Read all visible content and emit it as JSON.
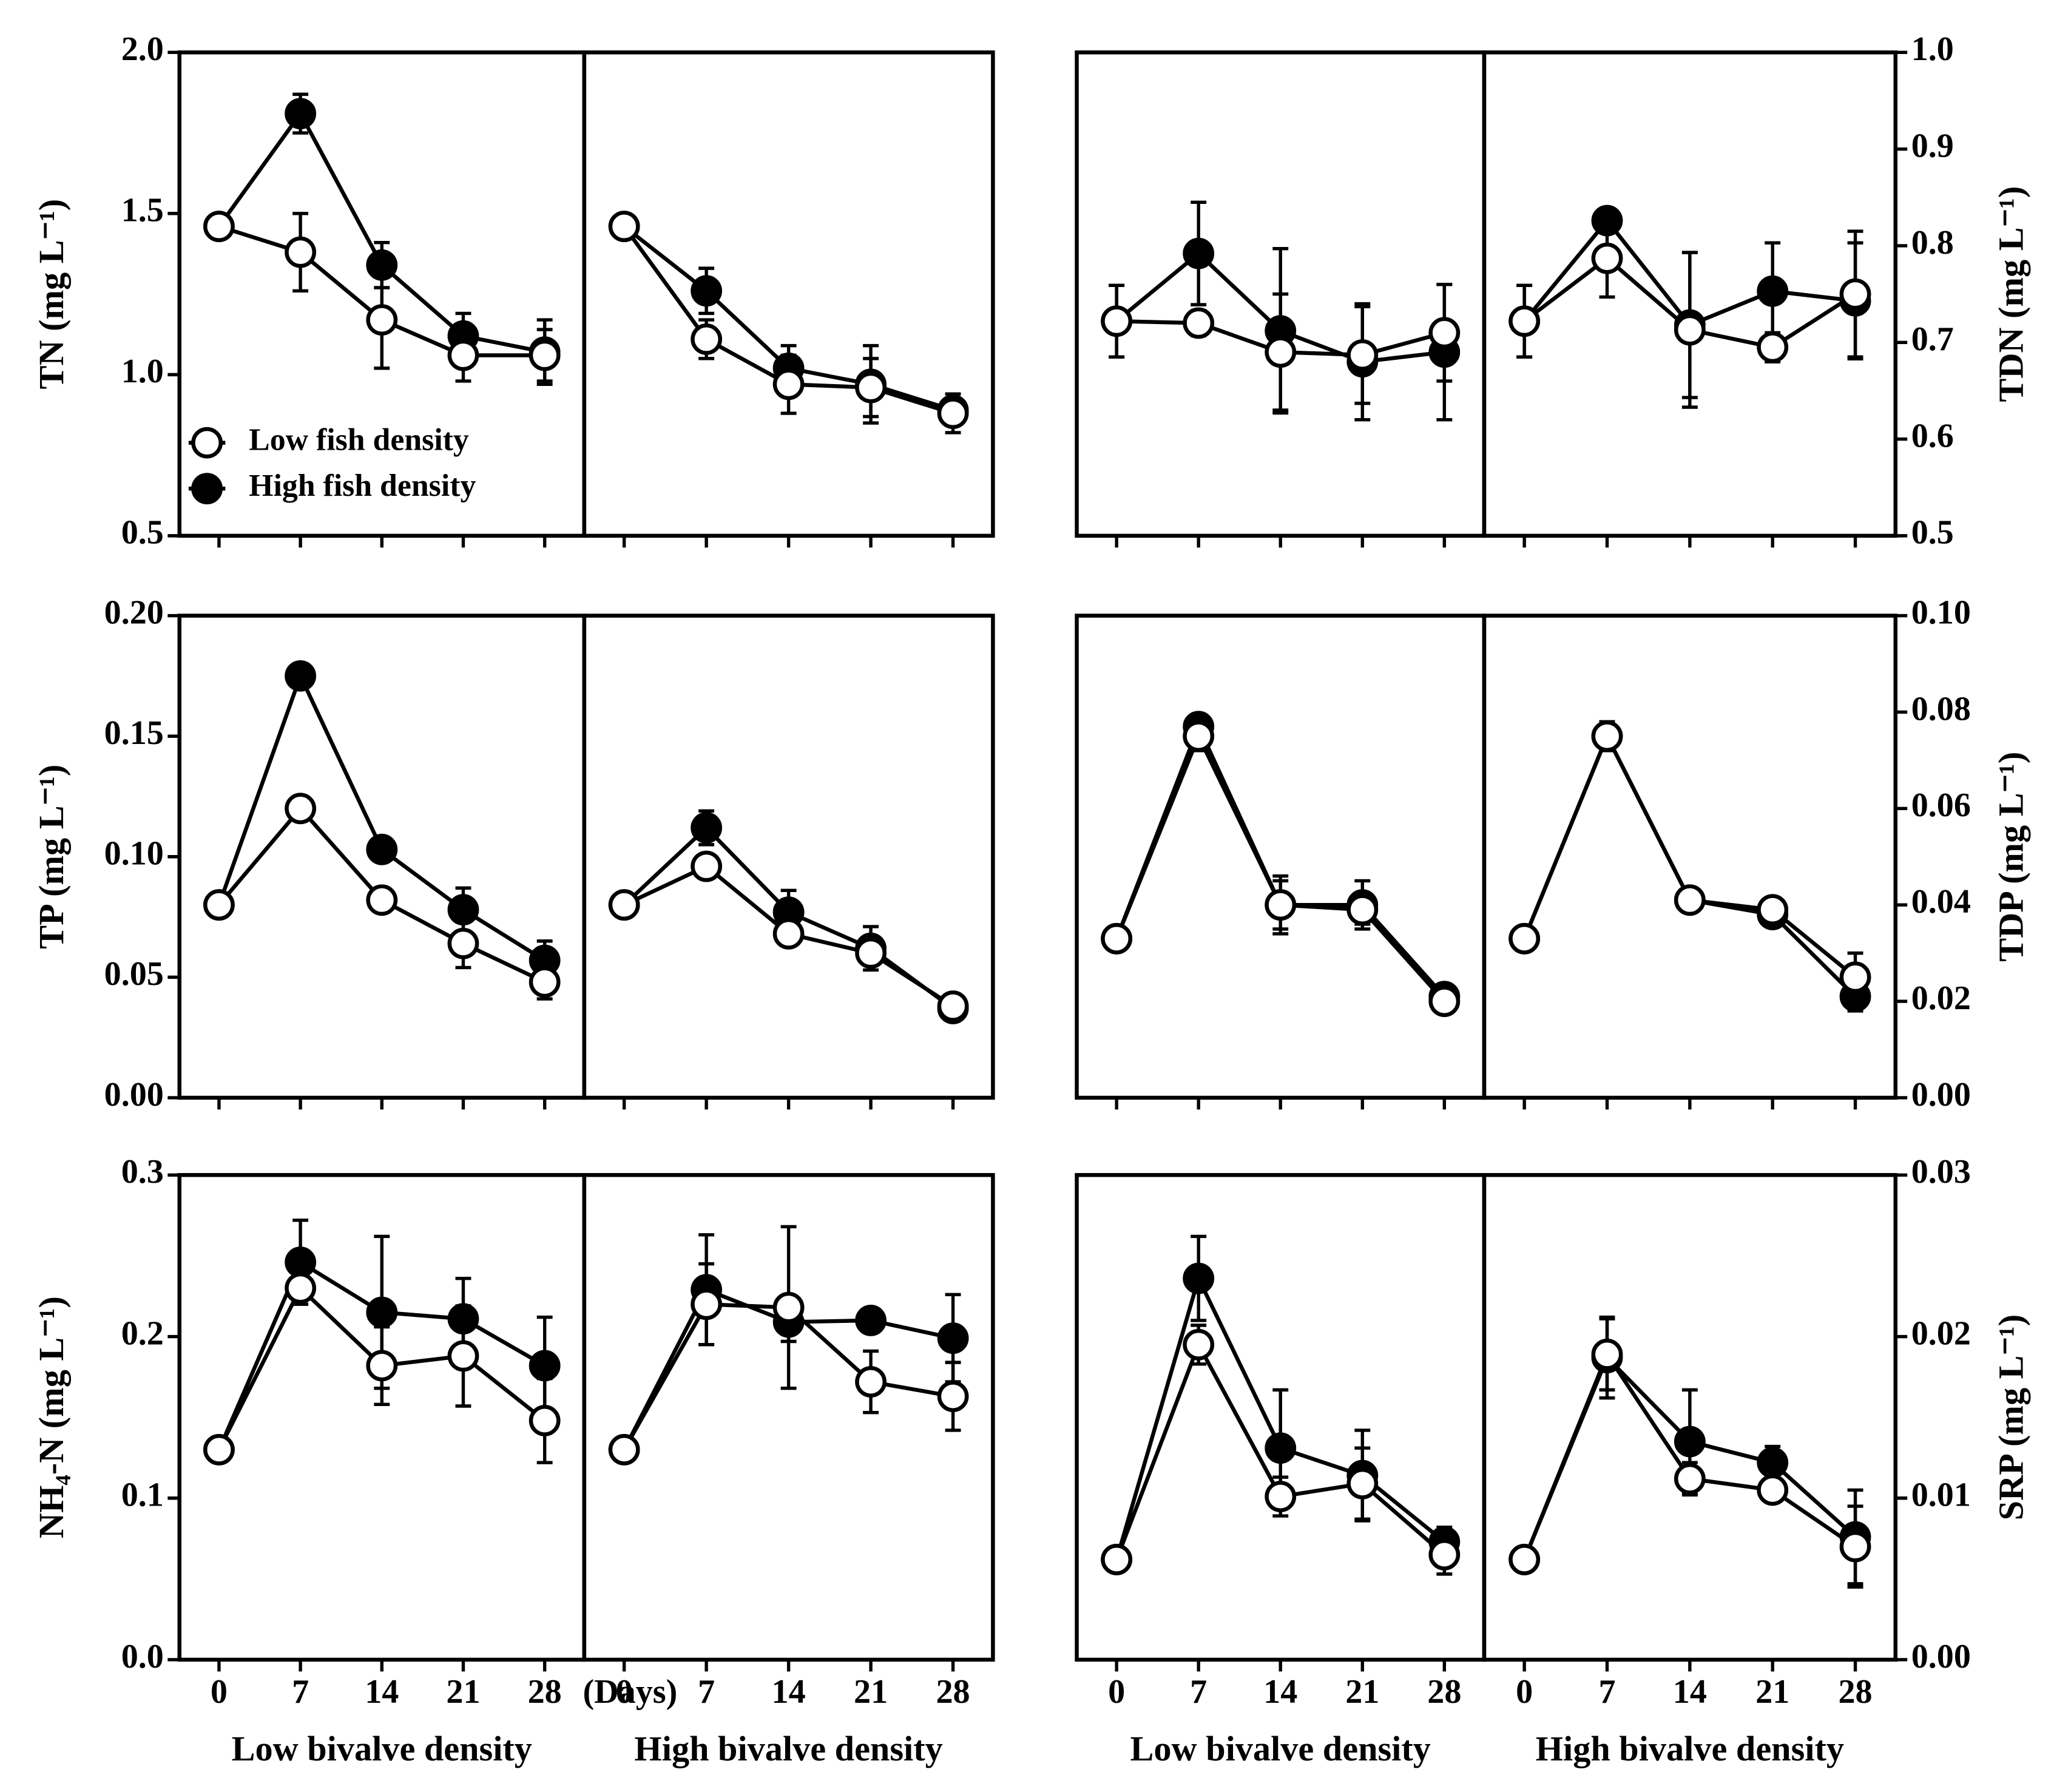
{
  "chart_data": [
    {
      "type": "line",
      "ylabel": "TN (mg L⁻¹)",
      "yaxis": "left",
      "ylim": [
        0.5,
        2.0
      ],
      "yticks": [
        0.5,
        {
          "value": 1.0,
          "label": "1.0"
        },
        1.5,
        {
          "value": 2.0,
          "label": "2.0"
        }
      ],
      "xlim": [
        -3.4,
        31.4
      ],
      "xticks": [
        0,
        7,
        14,
        21,
        28
      ],
      "legend": "lower left",
      "panels": [
        {
          "x": [
            0,
            7,
            14,
            21,
            28
          ],
          "series": [
            {
              "name": "Low fish density",
              "fill": "#ffffff",
              "values": [
                1.46,
                1.38,
                1.17,
                1.06,
                1.06
              ],
              "errors": [
                0,
                0.12,
                0.15,
                0.08,
                0.08
              ]
            },
            {
              "name": "High fish density",
              "fill": "#000000",
              "values": [
                1.46,
                1.81,
                1.34,
                1.12,
                1.07
              ],
              "errors": [
                0,
                0.06,
                0.07,
                0.07,
                0.1
              ]
            }
          ]
        },
        {
          "x": [
            0,
            7,
            14,
            21,
            28
          ],
          "series": [
            {
              "fill": "#ffffff",
              "values": [
                1.46,
                1.11,
                0.97,
                0.96,
                0.88
              ],
              "errors": [
                0,
                0.06,
                0.09,
                0.09,
                0.06
              ]
            },
            {
              "fill": "#000000",
              "values": [
                1.46,
                1.26,
                1.02,
                0.97,
                0.89
              ],
              "errors": [
                0,
                0.07,
                0.07,
                0.12,
                0.03
              ]
            }
          ]
        }
      ]
    },
    {
      "type": "line",
      "ylabel": "TDN (mg L⁻¹)",
      "yaxis": "right",
      "ylim": [
        0.5,
        1.0
      ],
      "yticks": [
        0.5,
        0.6,
        0.7,
        0.8,
        0.9,
        {
          "value": 1.0,
          "label": "1.0"
        }
      ],
      "xlim": [
        -3.4,
        31.4
      ],
      "xticks": [
        0,
        7,
        14,
        21,
        28
      ],
      "panels": [
        {
          "x": [
            0,
            7,
            14,
            21,
            28
          ],
          "series": [
            {
              "fill": "#ffffff",
              "values": [
                0.722,
                0.72,
                0.69,
                0.687,
                0.71
              ],
              "errors": [
                0.037,
                0.013,
                0.06,
                0.05,
                0.05
              ]
            },
            {
              "fill": "#000000",
              "values": [
                0.722,
                0.792,
                0.712,
                0.68,
                0.69
              ],
              "errors": [
                0.037,
                0.053,
                0.085,
                0.06,
                0.07
              ]
            }
          ]
        },
        {
          "x": [
            0,
            7,
            14,
            21,
            28
          ],
          "series": [
            {
              "fill": "#ffffff",
              "values": [
                0.722,
                0.787,
                0.713,
                0.695,
                0.75
              ],
              "errors": [
                0.037,
                0.04,
                0.08,
                0.015,
                0.065
              ]
            },
            {
              "fill": "#000000",
              "values": [
                0.722,
                0.826,
                0.718,
                0.753,
                0.743
              ],
              "errors": [
                0.037,
                0.01,
                0.075,
                0.05,
                0.06
              ]
            }
          ]
        }
      ]
    },
    {
      "type": "line",
      "ylabel": "TP (mg L⁻¹)",
      "yaxis": "left",
      "ylim": [
        0,
        0.2
      ],
      "yticks": [
        {
          "value": 0,
          "label": "0.00"
        },
        0.05,
        {
          "value": 0.1,
          "label": "0.10"
        },
        0.15,
        {
          "value": 0.2,
          "label": "0.20"
        }
      ],
      "xlim": [
        -3.4,
        31.4
      ],
      "xticks": [
        0,
        7,
        14,
        21,
        28
      ],
      "panels": [
        {
          "x": [
            0,
            7,
            14,
            21,
            28
          ],
          "series": [
            {
              "fill": "#ffffff",
              "values": [
                0.08,
                0.12,
                0.082,
                0.064,
                0.048
              ],
              "errors": [
                0,
                0.004,
                0.003,
                0.01,
                0.007
              ]
            },
            {
              "fill": "#000000",
              "values": [
                0.08,
                0.175,
                0.103,
                0.078,
                0.057
              ],
              "errors": [
                0,
                0.005,
                0.004,
                0.009,
                0.008
              ]
            }
          ]
        },
        {
          "x": [
            0,
            7,
            14,
            21,
            28
          ],
          "series": [
            {
              "fill": "#ffffff",
              "values": [
                0.08,
                0.096,
                0.068,
                0.06,
                0.038
              ],
              "errors": [
                0,
                0.003,
                0.004,
                0.004,
                0.005
              ]
            },
            {
              "fill": "#000000",
              "values": [
                0.08,
                0.112,
                0.077,
                0.062,
                0.037
              ],
              "errors": [
                0,
                0.007,
                0.009,
                0.009,
                0.003
              ]
            }
          ]
        }
      ]
    },
    {
      "type": "line",
      "ylabel": "TDP (mg L⁻¹)",
      "yaxis": "right",
      "ylim": [
        0,
        0.1
      ],
      "yticks": [
        {
          "value": 0,
          "label": "0.00"
        },
        {
          "value": 0.02,
          "label": "0.02"
        },
        {
          "value": 0.04,
          "label": "0.04"
        },
        {
          "value": 0.06,
          "label": "0.06"
        },
        {
          "value": 0.08,
          "label": "0.08"
        },
        {
          "value": 0.1,
          "label": "0.10"
        }
      ],
      "xlim": [
        -3.4,
        31.4
      ],
      "xticks": [
        0,
        7,
        14,
        21,
        28
      ],
      "panels": [
        {
          "x": [
            0,
            7,
            14,
            21,
            28
          ],
          "series": [
            {
              "fill": "#ffffff",
              "values": [
                0.033,
                0.075,
                0.04,
                0.039,
                0.02
              ],
              "errors": [
                0,
                0.003,
                0.005,
                0.003,
                0.001
              ]
            },
            {
              "fill": "#000000",
              "values": [
                0.033,
                0.077,
                0.04,
                0.04,
                0.021
              ],
              "errors": [
                0,
                0.002,
                0.006,
                0.005,
                0.001
              ]
            }
          ]
        },
        {
          "x": [
            0,
            7,
            14,
            21,
            28
          ],
          "series": [
            {
              "fill": "#ffffff",
              "values": [
                0.033,
                0.075,
                0.041,
                0.039,
                0.025
              ],
              "errors": [
                0,
                0.003,
                0.001,
                0.002,
                0.005
              ]
            },
            {
              "fill": "#000000",
              "values": [
                0.033,
                0.075,
                0.041,
                0.038,
                0.021
              ],
              "errors": [
                0,
                0.002,
                0.001,
                0.002,
                0.003
              ]
            }
          ]
        }
      ]
    },
    {
      "type": "line",
      "ylabel": "NH₄-N (mg L⁻¹)",
      "yaxis": "left",
      "ylim": [
        0,
        0.3
      ],
      "yticks": [
        {
          "value": 0,
          "label": "0.0"
        },
        0.1,
        0.2,
        0.3
      ],
      "xlim": [
        -3.4,
        31.4
      ],
      "xticks": [
        0,
        7,
        14,
        21,
        28
      ],
      "xtick_labels": true,
      "xunit": "(Days)",
      "panels": [
        {
          "xlabel": "Low  bivalve density",
          "x": [
            0,
            7,
            14,
            21,
            28
          ],
          "series": [
            {
              "fill": "#ffffff",
              "values": [
                0.13,
                0.23,
                0.182,
                0.188,
                0.148
              ],
              "errors": [
                0,
                0.01,
                0.024,
                0.031,
                0.026
              ]
            },
            {
              "fill": "#000000",
              "values": [
                0.13,
                0.246,
                0.215,
                0.211,
                0.182
              ],
              "errors": [
                0,
                0.026,
                0.047,
                0.025,
                0.03
              ]
            }
          ]
        },
        {
          "xlabel": "High bivalve density",
          "x": [
            0,
            7,
            14,
            21,
            28
          ],
          "series": [
            {
              "fill": "#ffffff",
              "values": [
                0.13,
                0.22,
                0.218,
                0.172,
                0.163
              ],
              "errors": [
                0,
                0.025,
                0.05,
                0.019,
                0.021
              ]
            },
            {
              "fill": "#000000",
              "values": [
                0.13,
                0.229,
                0.209,
                0.21,
                0.199
              ],
              "errors": [
                0,
                0.034,
                0.012,
                0.006,
                0.027
              ]
            }
          ]
        }
      ]
    },
    {
      "type": "line",
      "ylabel": "SRP (mg L⁻¹)",
      "yaxis": "right",
      "ylim": [
        0,
        0.03
      ],
      "yticks": [
        {
          "value": 0,
          "label": "0.00"
        },
        0.01,
        0.02,
        0.03
      ],
      "xlim": [
        -3.4,
        31.4
      ],
      "xticks": [
        0,
        7,
        14,
        21,
        28
      ],
      "xtick_labels": true,
      "panels": [
        {
          "xlabel": "Low bivalve density",
          "x": [
            0,
            7,
            14,
            21,
            28
          ],
          "series": [
            {
              "fill": "#ffffff",
              "values": [
                0.0062,
                0.0195,
                0.0101,
                0.0109,
                0.0065
              ],
              "errors": [
                0,
                0.0012,
                0.0012,
                0.0022,
                0.0012
              ]
            },
            {
              "fill": "#000000",
              "values": [
                0.0062,
                0.0236,
                0.0131,
                0.0114,
                0.0073
              ],
              "errors": [
                0,
                0.0026,
                0.0036,
                0.0028,
                0.0009
              ]
            }
          ]
        },
        {
          "xlabel": "High bivalve density",
          "x": [
            0,
            7,
            14,
            21,
            28
          ],
          "series": [
            {
              "fill": "#ffffff",
              "values": [
                0.0062,
                0.0189,
                0.0112,
                0.0105,
                0.007
              ],
              "errors": [
                0,
                0.0022,
                0.001,
                0.0005,
                0.0025
              ]
            },
            {
              "fill": "#000000",
              "values": [
                0.0062,
                0.0187,
                0.0135,
                0.0122,
                0.0076
              ],
              "errors": [
                0,
                0.0025,
                0.0032,
                0.001,
                0.0029
              ]
            }
          ]
        }
      ]
    }
  ]
}
